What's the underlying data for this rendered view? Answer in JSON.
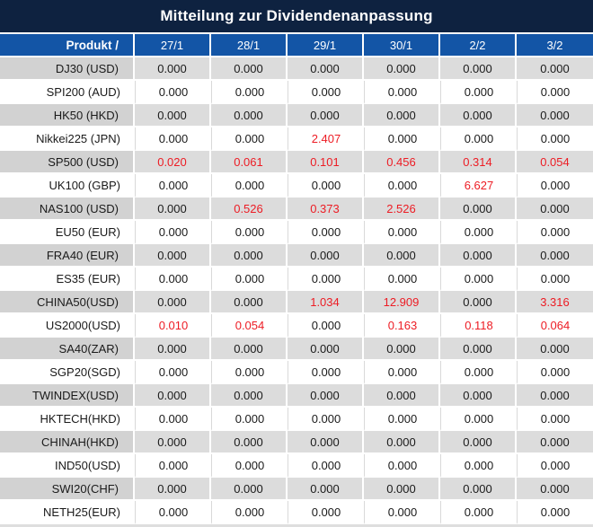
{
  "colors": {
    "title_bar": "#0e2240",
    "header_blue": "#1355a6",
    "row_gray": "#dcdcdc",
    "label_gray": "#d2d2d2",
    "grid_line": "#d9d9d9",
    "value_red": "#ed1c24",
    "text_dark": "#1a1a1a"
  },
  "chart_data": {
    "type": "table",
    "title": "Mitteilung zur Dividendenanpassung",
    "corner_header": "Produkt /",
    "columns": [
      "27/1",
      "28/1",
      "29/1",
      "30/1",
      "2/2",
      "3/2"
    ],
    "rows": [
      {
        "label": "DJ30 (USD)",
        "values": [
          "0.000",
          "0.000",
          "0.000",
          "0.000",
          "0.000",
          "0.000"
        ],
        "red": []
      },
      {
        "label": "SPI200 (AUD)",
        "values": [
          "0.000",
          "0.000",
          "0.000",
          "0.000",
          "0.000",
          "0.000"
        ],
        "red": []
      },
      {
        "label": "HK50 (HKD)",
        "values": [
          "0.000",
          "0.000",
          "0.000",
          "0.000",
          "0.000",
          "0.000"
        ],
        "red": []
      },
      {
        "label": "Nikkei225 (JPN)",
        "values": [
          "0.000",
          "0.000",
          "2.407",
          "0.000",
          "0.000",
          "0.000"
        ],
        "red": [
          2
        ]
      },
      {
        "label": "SP500 (USD)",
        "values": [
          "0.020",
          "0.061",
          "0.101",
          "0.456",
          "0.314",
          "0.054"
        ],
        "red": [
          0,
          1,
          2,
          3,
          4,
          5
        ]
      },
      {
        "label": "UK100 (GBP)",
        "values": [
          "0.000",
          "0.000",
          "0.000",
          "0.000",
          "6.627",
          "0.000"
        ],
        "red": [
          4
        ]
      },
      {
        "label": "NAS100 (USD)",
        "values": [
          "0.000",
          "0.526",
          "0.373",
          "2.526",
          "0.000",
          "0.000"
        ],
        "red": [
          1,
          2,
          3
        ]
      },
      {
        "label": "EU50 (EUR)",
        "values": [
          "0.000",
          "0.000",
          "0.000",
          "0.000",
          "0.000",
          "0.000"
        ],
        "red": []
      },
      {
        "label": "FRA40 (EUR)",
        "values": [
          "0.000",
          "0.000",
          "0.000",
          "0.000",
          "0.000",
          "0.000"
        ],
        "red": []
      },
      {
        "label": "ES35 (EUR)",
        "values": [
          "0.000",
          "0.000",
          "0.000",
          "0.000",
          "0.000",
          "0.000"
        ],
        "red": []
      },
      {
        "label": "CHINA50(USD)",
        "values": [
          "0.000",
          "0.000",
          "1.034",
          "12.909",
          "0.000",
          "3.316"
        ],
        "red": [
          2,
          3,
          5
        ]
      },
      {
        "label": "US2000(USD)",
        "values": [
          "0.010",
          "0.054",
          "0.000",
          "0.163",
          "0.118",
          "0.064"
        ],
        "red": [
          0,
          1,
          3,
          4,
          5
        ]
      },
      {
        "label": "SA40(ZAR)",
        "values": [
          "0.000",
          "0.000",
          "0.000",
          "0.000",
          "0.000",
          "0.000"
        ],
        "red": []
      },
      {
        "label": "SGP20(SGD)",
        "values": [
          "0.000",
          "0.000",
          "0.000",
          "0.000",
          "0.000",
          "0.000"
        ],
        "red": []
      },
      {
        "label": "TWINDEX(USD)",
        "values": [
          "0.000",
          "0.000",
          "0.000",
          "0.000",
          "0.000",
          "0.000"
        ],
        "red": []
      },
      {
        "label": "HKTECH(HKD)",
        "values": [
          "0.000",
          "0.000",
          "0.000",
          "0.000",
          "0.000",
          "0.000"
        ],
        "red": []
      },
      {
        "label": "CHINAH(HKD)",
        "values": [
          "0.000",
          "0.000",
          "0.000",
          "0.000",
          "0.000",
          "0.000"
        ],
        "red": []
      },
      {
        "label": "IND50(USD)",
        "values": [
          "0.000",
          "0.000",
          "0.000",
          "0.000",
          "0.000",
          "0.000"
        ],
        "red": []
      },
      {
        "label": "SWI20(CHF)",
        "values": [
          "0.000",
          "0.000",
          "0.000",
          "0.000",
          "0.000",
          "0.000"
        ],
        "red": []
      },
      {
        "label": "NETH25(EUR)",
        "values": [
          "0.000",
          "0.000",
          "0.000",
          "0.000",
          "0.000",
          "0.000"
        ],
        "red": []
      }
    ]
  }
}
